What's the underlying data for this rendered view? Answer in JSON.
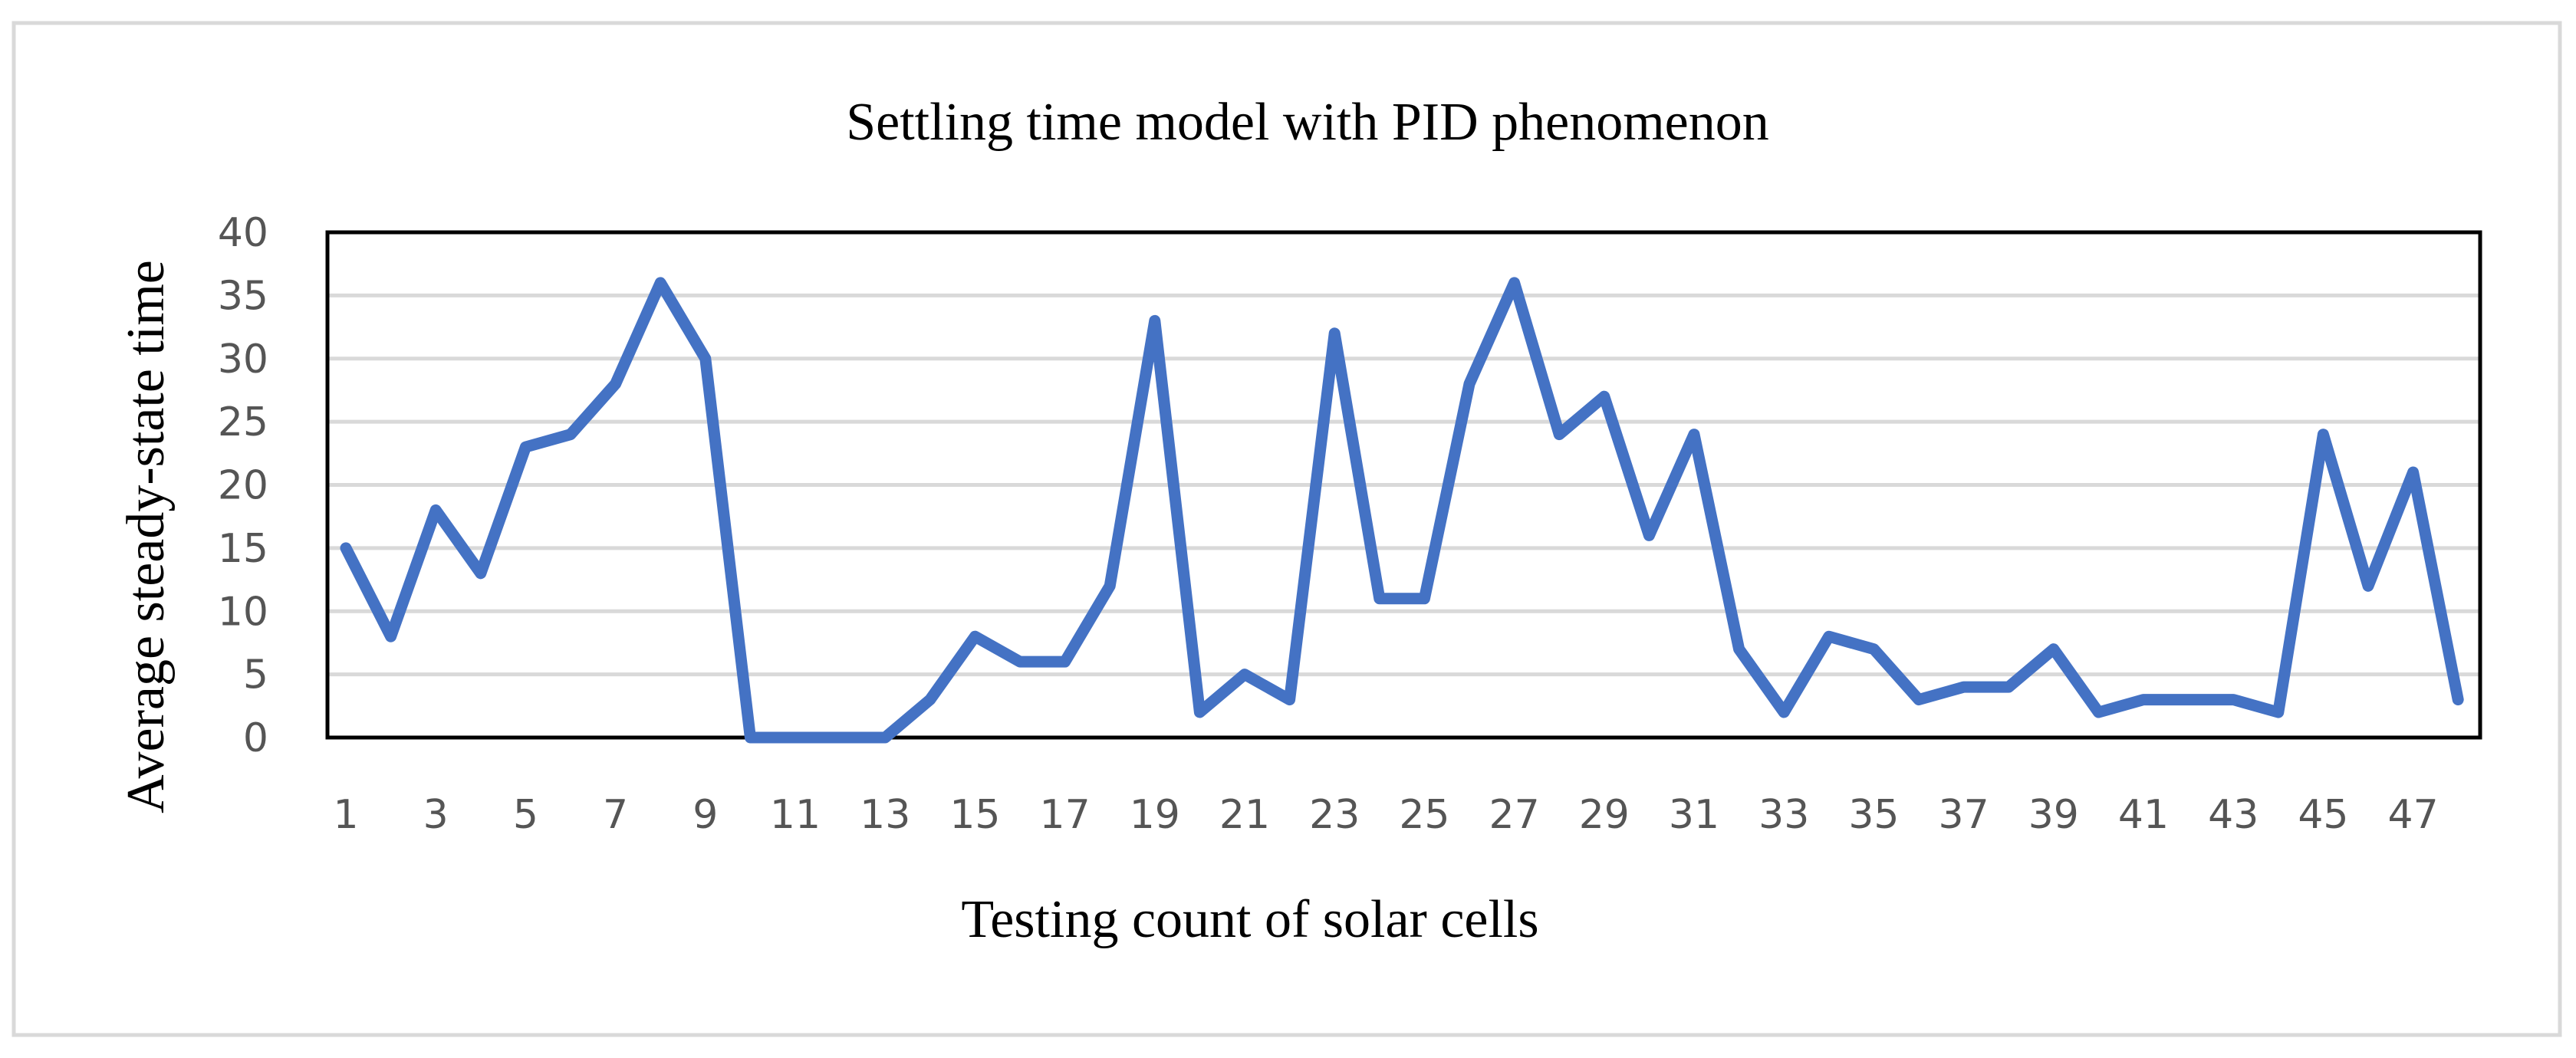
{
  "chart_data": {
    "type": "line",
    "title": "Settling time model with PID phenomenon",
    "xlabel": "Testing count of solar cells",
    "ylabel": "Average steady-state time",
    "ylim": [
      0,
      40
    ],
    "yticks": [
      "0",
      "5",
      "10",
      "15",
      "20",
      "25",
      "30",
      "35",
      "40"
    ],
    "grid": true,
    "legend": "none",
    "x": [
      1,
      2,
      3,
      4,
      5,
      6,
      7,
      8,
      9,
      10,
      11,
      12,
      13,
      14,
      15,
      16,
      17,
      18,
      19,
      20,
      21,
      22,
      23,
      24,
      25,
      26,
      27,
      28,
      29,
      30,
      31,
      32,
      33,
      34,
      35,
      36,
      37,
      38,
      39,
      40,
      41,
      42,
      43,
      44,
      45,
      46,
      47,
      48
    ],
    "x_tick_labels": [
      "1",
      "3",
      "5",
      "7",
      "9",
      "11",
      "13",
      "15",
      "17",
      "19",
      "21",
      "23",
      "25",
      "27",
      "29",
      "31",
      "33",
      "35",
      "37",
      "39",
      "41",
      "43",
      "45",
      "47"
    ],
    "series": [
      {
        "name": "Average steady-state time",
        "color": "#4472C4",
        "values": [
          15,
          8,
          18,
          13,
          23,
          24,
          28,
          36,
          30,
          0,
          0,
          0,
          0,
          3,
          8,
          6,
          6,
          12,
          33,
          2,
          5,
          3,
          32,
          11,
          11,
          28,
          36,
          24,
          27,
          16,
          24,
          7,
          2,
          8,
          7,
          3,
          4,
          4,
          7,
          2,
          3,
          3,
          3,
          2,
          24,
          12,
          21,
          3
        ]
      }
    ]
  },
  "style": {
    "line_color": "#4472C4",
    "grid_color": "#D9D9D9",
    "frame_color": "#D9D9D9",
    "axis_color": "#000000"
  }
}
